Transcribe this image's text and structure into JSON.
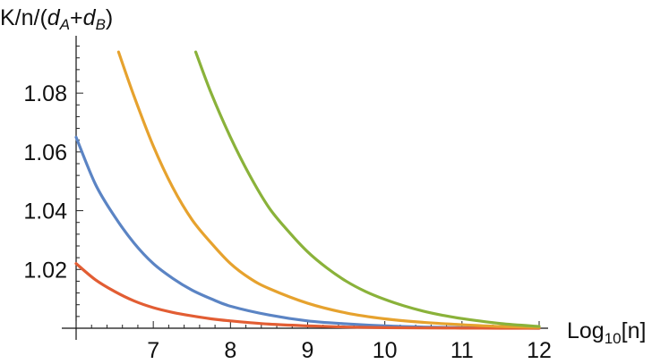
{
  "chart_data": {
    "type": "line",
    "title": "",
    "xlabel": "Log10[n]",
    "xlabel_parts": {
      "base": "Log",
      "sub": "10",
      "arg": "[n]"
    },
    "ylabel": "K/n/(dA+dB)",
    "ylabel_parts": {
      "prefix": "K/n/(",
      "a": "d",
      "a_sub": "A",
      "plus": "+",
      "b": "d",
      "b_sub": "B",
      "suffix": ")"
    },
    "xlim": [
      6,
      12
    ],
    "ylim": [
      1.0,
      1.098
    ],
    "x_axis_crosses_y": 1.0,
    "x_ticks": [
      7,
      8,
      9,
      10,
      11,
      12
    ],
    "x_tick_labels": [
      "7",
      "8",
      "9",
      "10",
      "11",
      "12"
    ],
    "y_ticks": [
      1.02,
      1.04,
      1.06,
      1.08
    ],
    "y_tick_labels": [
      "1.02",
      "1.04",
      "1.06",
      "1.08"
    ],
    "grid": false,
    "legend": "none",
    "series": [
      {
        "color": "#5b84c4",
        "x": [
          6.0,
          6.25,
          6.5,
          6.75,
          7.0,
          7.25,
          7.5,
          7.75,
          8.0,
          8.5,
          9.0,
          9.5,
          10.0,
          10.5,
          11.0,
          11.5,
          12.0
        ],
        "y": [
          1.065,
          1.049,
          1.038,
          1.029,
          1.022,
          1.017,
          1.013,
          1.01,
          1.0075,
          1.0045,
          1.0025,
          1.0015,
          1.0008,
          1.0004,
          1.0002,
          1.0001,
          1.0
        ]
      },
      {
        "color": "#e25d33",
        "x": [
          6.0,
          6.25,
          6.5,
          6.75,
          7.0,
          7.25,
          7.5,
          7.75,
          8.0,
          8.5,
          9.0,
          9.5,
          10.0,
          10.5,
          11.0,
          11.5,
          12.0
        ],
        "y": [
          1.022,
          1.0165,
          1.0125,
          1.0093,
          1.007,
          1.0054,
          1.0042,
          1.0032,
          1.0025,
          1.0014,
          1.0008,
          1.0004,
          1.0002,
          1.0001,
          1.00005,
          1.0,
          1.0
        ]
      },
      {
        "color": "#e6a22e",
        "x": [
          6.55,
          6.75,
          7.0,
          7.25,
          7.5,
          7.75,
          8.0,
          8.25,
          8.5,
          9.0,
          9.5,
          10.0,
          10.5,
          11.0,
          11.5,
          12.0
        ],
        "y": [
          1.094,
          1.079,
          1.062,
          1.048,
          1.037,
          1.029,
          1.022,
          1.017,
          1.0135,
          1.0085,
          1.0052,
          1.0032,
          1.002,
          1.0012,
          1.0006,
          1.0003
        ]
      },
      {
        "color": "#8ab23a",
        "x": [
          7.55,
          7.75,
          8.0,
          8.25,
          8.5,
          8.75,
          9.0,
          9.25,
          9.5,
          9.75,
          10.0,
          10.25,
          10.5,
          10.75,
          11.0,
          11.5,
          12.0
        ],
        "y": [
          1.094,
          1.08,
          1.065,
          1.052,
          1.041,
          1.033,
          1.026,
          1.0205,
          1.016,
          1.0125,
          1.0098,
          1.0076,
          1.0058,
          1.0044,
          1.0033,
          1.0016,
          1.0006
        ]
      }
    ]
  }
}
